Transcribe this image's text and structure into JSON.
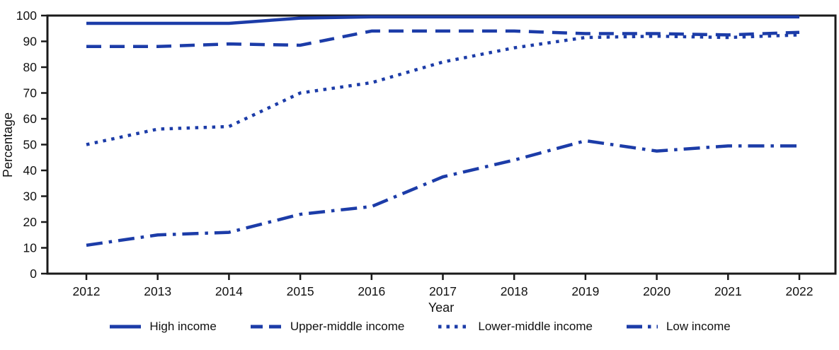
{
  "chart_data": {
    "type": "line",
    "title": "",
    "xlabel": "Year",
    "ylabel": "Percentage",
    "x": [
      2012,
      2013,
      2014,
      2015,
      2016,
      2017,
      2018,
      2019,
      2020,
      2021,
      2022
    ],
    "ylim": [
      0,
      100
    ],
    "yticks": [
      0,
      10,
      20,
      30,
      40,
      50,
      60,
      70,
      80,
      90,
      100
    ],
    "grid": false,
    "legend_position": "bottom",
    "series": [
      {
        "name": "High income",
        "style": "solid",
        "values": [
          97,
          97,
          97,
          99,
          99.5,
          99.5,
          99.5,
          99.5,
          99.5,
          99.5,
          99.5
        ]
      },
      {
        "name": "Upper-middle income",
        "style": "dashed",
        "values": [
          88,
          88,
          89,
          88.5,
          94,
          94,
          94,
          93,
          93,
          92.5,
          93.5
        ]
      },
      {
        "name": "Lower-middle income",
        "style": "dotted",
        "values": [
          50,
          56,
          57,
          70,
          74,
          82,
          87.5,
          91.5,
          92,
          91.5,
          92.5
        ]
      },
      {
        "name": "Low income",
        "style": "dashdot",
        "values": [
          11,
          15,
          16,
          23,
          26,
          37.5,
          44,
          51.5,
          47.5,
          49.5,
          49.5
        ]
      }
    ]
  },
  "colors": {
    "line": "#1c3ca8",
    "axis": "#1a1a1a",
    "background": "#ffffff"
  }
}
